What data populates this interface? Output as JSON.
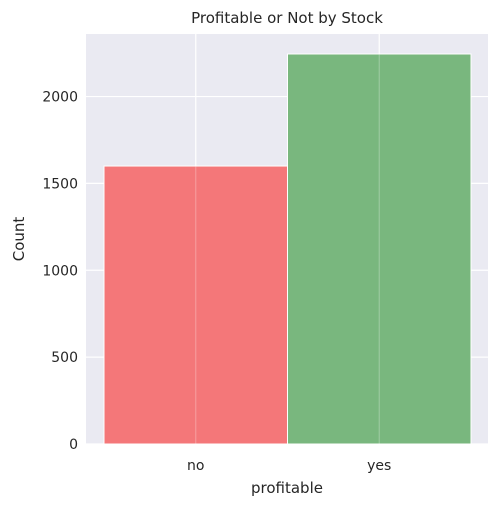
{
  "chart_data": {
    "type": "bar",
    "title": "Profitable or Not by Stock",
    "xlabel": "profitable",
    "ylabel": "Count",
    "categories": [
      "no",
      "yes"
    ],
    "values": [
      1600,
      2245
    ],
    "colors": [
      "#f47375",
      "#75b57a"
    ],
    "ylim": [
      0,
      2360
    ],
    "yticks": [
      0,
      500,
      1000,
      1500,
      2000
    ],
    "ytick_labels": [
      "0",
      "500",
      "1000",
      "1500",
      "2000"
    ],
    "grid": true,
    "background": "#eaeaf2"
  }
}
